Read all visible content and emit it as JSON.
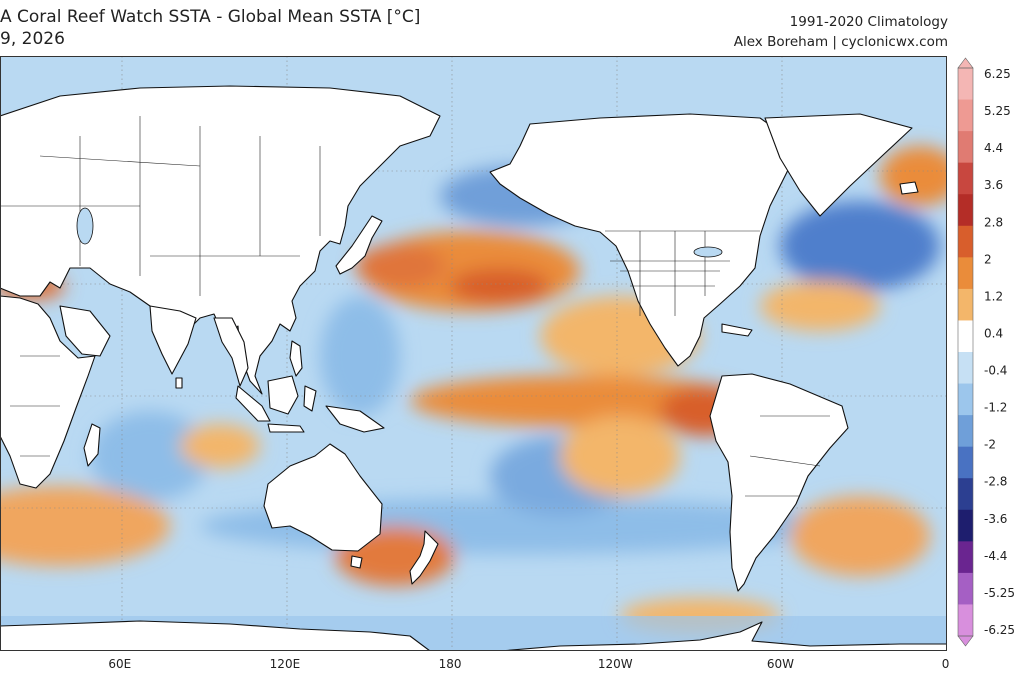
{
  "header": {
    "title": "A Coral Reef Watch SSTA - Global Mean SSTA [°C]",
    "date": "9, 2026",
    "climatology": "1991-2020 Climatology",
    "credit": "Alex Boreham | cyclonicwx.com"
  },
  "map": {
    "projection": "equirectangular, Pacific-centered",
    "lon_labels": [
      "60E",
      "120E",
      "180",
      "120W",
      "60W",
      "0"
    ],
    "lon_values": [
      60,
      120,
      180,
      240,
      300,
      360
    ]
  },
  "colorbar": {
    "labels": [
      "6.25",
      "5.25",
      "4.4",
      "3.6",
      "2.8",
      "2",
      "1.2",
      "0.4",
      "-0.4",
      "-1.2",
      "-2",
      "-2.8",
      "-3.6",
      "-4.4",
      "-5.25",
      "-6.25"
    ],
    "colors": [
      "#f4b6b4",
      "#ee9a93",
      "#e07b72",
      "#c8473f",
      "#b42d27",
      "#d85e2c",
      "#ea8c3a",
      "#f3b66a",
      "#ffffff",
      "#c6e0f4",
      "#9cc6ec",
      "#6f9fd9",
      "#4972c2",
      "#2c3f91",
      "#1e1e6e",
      "#6a2590",
      "#a55fc4",
      "#d88fdd"
    ],
    "colors_note": "ocean-anomaly palette"
  },
  "palette": {
    "ocean_neutral": "#b9d9f2",
    "warm": "#ea8c3a",
    "hot": "#d85e2c",
    "cool": "#9cc6ec",
    "cold": "#4972c2",
    "land": "#ffffff",
    "coast": "#111111"
  }
}
